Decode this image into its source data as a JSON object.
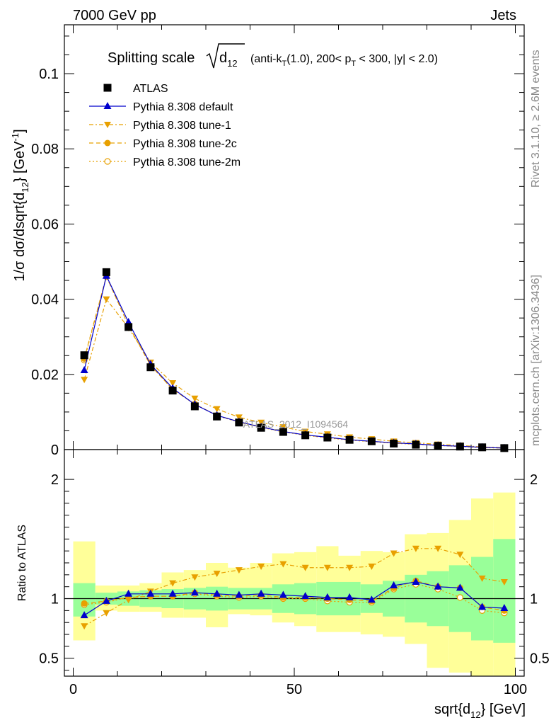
{
  "header": {
    "left": "7000 GeV pp",
    "right": "Jets"
  },
  "side_text": {
    "upper": "Rivet 3.1.10, ≥ 2.6M events",
    "lower": "mcplots.cern.ch [arXiv:1306.3436]"
  },
  "watermark": "ATLAS_2012_I1094564",
  "title": {
    "prefix": "Splitting scale ",
    "var": "d",
    "var_sub": "12",
    "tail_1": " (anti-k",
    "tail_1_sub": "T",
    "tail_2": "(1.0), 200< p",
    "tail_2_sub": "T",
    "tail_3": " < 300, |y| < 2.0)"
  },
  "colors": {
    "data": "#000000",
    "default": "#0000cc",
    "tune": "#e8a000",
    "band_inner": "#99ff99",
    "band_outer": "#ffff99"
  },
  "chart_data": [
    {
      "type": "line",
      "panel": "main",
      "ylabel_main": "1/σ dσ/dsqrt{d",
      "ylabel_sub": "12",
      "ylabel_tail": "} [GeV",
      "ylabel_sup": "-1",
      "ylabel_end": "]",
      "xlim": [
        -2,
        102
      ],
      "ylim": [
        0,
        0.113
      ],
      "yticks": [
        {
          "v": 0.02,
          "label": "0.02"
        },
        {
          "v": 0.04,
          "label": "0.04"
        },
        {
          "v": 0.06,
          "label": "0.06"
        },
        {
          "v": 0.08,
          "label": "0.08"
        },
        {
          "v": 0.1,
          "label": "0.1"
        }
      ],
      "x": [
        2.5,
        7.5,
        12.5,
        17.5,
        22.5,
        27.5,
        32.5,
        37.5,
        42.5,
        47.5,
        52.5,
        57.5,
        62.5,
        67.5,
        72.5,
        77.5,
        82.5,
        87.5,
        92.5,
        97.5
      ],
      "series": [
        {
          "name": "ATLAS",
          "style": "data",
          "values": [
            0.0251,
            0.0472,
            0.0326,
            0.0219,
            0.0157,
            0.0115,
            0.0088,
            0.0072,
            0.0058,
            0.0047,
            0.0038,
            0.0032,
            0.0026,
            0.0022,
            0.0016,
            0.0013,
            0.001,
            0.0008,
            0.0006,
            0.0004
          ]
        },
        {
          "name": "Pythia 8.308 default",
          "style": "default",
          "values": [
            0.0211,
            0.0462,
            0.0339,
            0.0227,
            0.0163,
            0.012,
            0.0091,
            0.0074,
            0.006,
            0.0048,
            0.0039,
            0.0033,
            0.0026,
            0.0022,
            0.0018,
            0.0015,
            0.0011,
            0.0009,
            0.0006,
            0.0004
          ]
        },
        {
          "name": "Pythia 8.308 tune-1",
          "style": "tune1",
          "values": [
            0.0186,
            0.04,
            0.0324,
            0.0232,
            0.0177,
            0.0136,
            0.0108,
            0.0086,
            0.0072,
            0.006,
            0.0048,
            0.0041,
            0.0033,
            0.0028,
            0.0022,
            0.0018,
            0.0014,
            0.0011,
            0.0007,
            0.0005
          ]
        },
        {
          "name": "Pythia 8.308 tune-2c",
          "style": "tune2c",
          "values": [
            0.0242,
            0.0461,
            0.033,
            0.0224,
            0.016,
            0.0121,
            0.0091,
            0.0074,
            0.006,
            0.0048,
            0.0039,
            0.0032,
            0.0026,
            0.0022,
            0.0017,
            0.0015,
            0.0011,
            0.0009,
            0.0006,
            0.0004
          ]
        },
        {
          "name": "Pythia 8.308 tune-2m",
          "style": "tune2m",
          "values": [
            0.0238,
            0.046,
            0.033,
            0.0224,
            0.016,
            0.0121,
            0.009,
            0.0073,
            0.0059,
            0.0047,
            0.0038,
            0.0031,
            0.0025,
            0.0021,
            0.0017,
            0.0014,
            0.0011,
            0.0008,
            0.0005,
            0.0004
          ]
        }
      ]
    },
    {
      "type": "line",
      "panel": "ratio",
      "ylabel": "Ratio to ATLAS",
      "xlabel_main": "sqrt{d",
      "xlabel_sub": "12",
      "xlabel_tail": "} [GeV]",
      "xlim": [
        -2,
        102
      ],
      "ylim": [
        0.35,
        2.25
      ],
      "xticks": [
        {
          "v": 0,
          "label": "0"
        },
        {
          "v": 50,
          "label": "50"
        },
        {
          "v": 100,
          "label": "100"
        }
      ],
      "yticks": [
        {
          "v": 0.5,
          "label": "0.5"
        },
        {
          "v": 1,
          "label": "1"
        },
        {
          "v": 2,
          "label": "2"
        }
      ],
      "bins": [
        [
          0,
          5
        ],
        [
          5,
          10
        ],
        [
          10,
          15
        ],
        [
          15,
          20
        ],
        [
          20,
          25
        ],
        [
          25,
          30
        ],
        [
          30,
          35
        ],
        [
          35,
          40
        ],
        [
          40,
          45
        ],
        [
          45,
          50
        ],
        [
          50,
          55
        ],
        [
          55,
          60
        ],
        [
          60,
          65
        ],
        [
          65,
          70
        ],
        [
          70,
          75
        ],
        [
          75,
          80
        ],
        [
          80,
          85
        ],
        [
          85,
          90
        ],
        [
          90,
          95
        ],
        [
          95,
          100
        ]
      ],
      "band_inner": [
        [
          0.85,
          1.13
        ],
        [
          0.95,
          1.05
        ],
        [
          0.94,
          1.06
        ],
        [
          0.93,
          1.07
        ],
        [
          0.92,
          1.08
        ],
        [
          0.91,
          1.09
        ],
        [
          0.9,
          1.1
        ],
        [
          0.91,
          1.09
        ],
        [
          0.91,
          1.09
        ],
        [
          0.88,
          1.12
        ],
        [
          0.87,
          1.13
        ],
        [
          0.86,
          1.14
        ],
        [
          0.86,
          1.14
        ],
        [
          0.88,
          1.12
        ],
        [
          0.85,
          1.15
        ],
        [
          0.8,
          1.2
        ],
        [
          0.77,
          1.23
        ],
        [
          0.72,
          1.28
        ],
        [
          0.65,
          1.35
        ],
        [
          0.63,
          1.5
        ]
      ],
      "band_outer": [
        [
          0.65,
          1.48
        ],
        [
          0.9,
          1.11
        ],
        [
          0.89,
          1.11
        ],
        [
          0.89,
          1.13
        ],
        [
          0.84,
          1.22
        ],
        [
          0.84,
          1.24
        ],
        [
          0.76,
          1.3
        ],
        [
          0.87,
          1.26
        ],
        [
          0.86,
          1.3
        ],
        [
          0.8,
          1.38
        ],
        [
          0.77,
          1.39
        ],
        [
          0.72,
          1.44
        ],
        [
          0.72,
          1.36
        ],
        [
          0.7,
          1.4
        ],
        [
          0.68,
          1.39
        ],
        [
          0.62,
          1.54
        ],
        [
          0.42,
          1.55
        ],
        [
          0.38,
          1.66
        ],
        [
          0.35,
          1.84
        ],
        [
          0.35,
          1.89
        ]
      ],
      "x": [
        2.5,
        7.5,
        12.5,
        17.5,
        22.5,
        27.5,
        32.5,
        37.5,
        42.5,
        47.5,
        52.5,
        57.5,
        62.5,
        67.5,
        72.5,
        77.5,
        82.5,
        87.5,
        92.5,
        97.5
      ],
      "series": [
        {
          "name": "Pythia 8.308 default",
          "style": "default",
          "values": [
            0.86,
            0.98,
            1.04,
            1.04,
            1.04,
            1.05,
            1.04,
            1.03,
            1.04,
            1.03,
            1.02,
            1.01,
            1.01,
            0.99,
            1.11,
            1.14,
            1.1,
            1.09,
            0.93,
            0.92
          ]
        },
        {
          "name": "Pythia 8.308 tune-1",
          "style": "tune1",
          "values": [
            0.77,
            0.88,
            0.99,
            1.06,
            1.13,
            1.18,
            1.21,
            1.24,
            1.27,
            1.29,
            1.26,
            1.26,
            1.26,
            1.27,
            1.38,
            1.42,
            1.42,
            1.37,
            1.17,
            1.14
          ]
        },
        {
          "name": "Pythia 8.308 tune-2c",
          "style": "tune2c",
          "values": [
            0.96,
            0.98,
            1.01,
            1.02,
            1.02,
            1.05,
            1.03,
            1.02,
            1.03,
            1.01,
            1.01,
            1.0,
            0.99,
            0.98,
            1.09,
            1.15,
            1.1,
            1.09,
            0.93,
            0.9
          ]
        },
        {
          "name": "Pythia 8.308 tune-2m",
          "style": "tune2m",
          "values": [
            0.95,
            0.97,
            1.01,
            1.02,
            1.02,
            1.04,
            1.02,
            1.01,
            1.02,
            1.0,
            1.0,
            0.98,
            0.97,
            0.97,
            1.08,
            1.12,
            1.08,
            1.01,
            0.9,
            0.88
          ]
        }
      ]
    }
  ]
}
